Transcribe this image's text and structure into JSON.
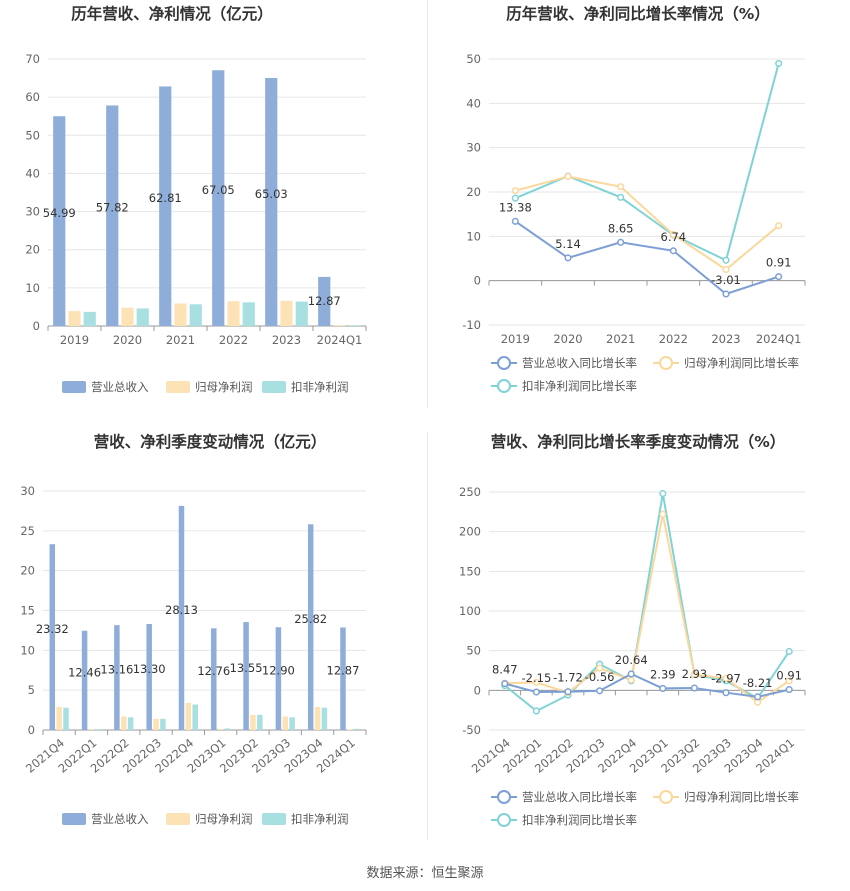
{
  "colors": {
    "revenue": "#8eadd9",
    "net_profit": "#fde2b5",
    "deducted_profit": "#a8e0e2",
    "revenue_line": "#7c9fd5",
    "net_profit_line": "#fcd79b",
    "deducted_profit_line": "#7fd3d5"
  },
  "source_text": "数据来源：恒生聚源",
  "chart_data": [
    {
      "type": "bar",
      "title": "历年营收、净利情况（亿元）",
      "categories": [
        "2019",
        "2020",
        "2021",
        "2022",
        "2023",
        "2024Q1"
      ],
      "ylim": [
        0,
        70
      ],
      "yticks": [
        0,
        10,
        20,
        30,
        40,
        50,
        60,
        70
      ],
      "series": [
        {
          "name": "营业总收入",
          "values": [
            54.99,
            57.82,
            62.81,
            67.05,
            65.03,
            12.87
          ],
          "labels": [
            "54.99",
            "57.82",
            "62.81",
            "67.05",
            "65.03",
            "12.87"
          ]
        },
        {
          "name": "归母净利润",
          "values": [
            3.9,
            4.8,
            5.9,
            6.5,
            6.6,
            0.1
          ]
        },
        {
          "name": "扣非净利润",
          "values": [
            3.7,
            4.6,
            5.7,
            6.2,
            6.4,
            0.15
          ]
        }
      ],
      "legend": "bottom",
      "grid": true
    },
    {
      "type": "line",
      "title": "历年营收、净利同比增长率情况（%）",
      "categories": [
        "2019",
        "2020",
        "2021",
        "2022",
        "2023",
        "2024Q1"
      ],
      "ylim": [
        -10,
        50
      ],
      "yticks": [
        -10,
        0,
        10,
        20,
        30,
        40,
        50
      ],
      "series": [
        {
          "name": "营业总收入同比增长率",
          "values": [
            13.38,
            5.14,
            8.65,
            6.74,
            -3.01,
            0.91
          ],
          "labels": [
            "13.38",
            "5.14",
            "8.65",
            "6.74",
            "-3.01",
            "0.91"
          ]
        },
        {
          "name": "归母净利润同比增长率",
          "values": [
            20.3,
            23.5,
            21.2,
            10.4,
            2.5,
            12.4
          ]
        },
        {
          "name": "扣非净利润同比增长率",
          "values": [
            18.6,
            23.6,
            18.8,
            10.3,
            4.6,
            49.0
          ]
        }
      ],
      "legend": "bottom",
      "grid": true
    },
    {
      "type": "bar",
      "title": "营收、净利季度变动情况（亿元）",
      "categories": [
        "2021Q4",
        "2022Q1",
        "2022Q2",
        "2022Q3",
        "2022Q4",
        "2023Q1",
        "2023Q2",
        "2023Q3",
        "2023Q4",
        "2024Q1"
      ],
      "ylim": [
        0,
        30
      ],
      "yticks": [
        0,
        5,
        10,
        15,
        20,
        25,
        30
      ],
      "series": [
        {
          "name": "营业总收入",
          "values": [
            23.32,
            12.46,
            13.16,
            13.3,
            28.13,
            12.76,
            13.55,
            12.9,
            25.82,
            12.87
          ],
          "labels": [
            "23.32",
            "12.46",
            "13.16",
            "13.30",
            "28.13",
            "12.76",
            "13.55",
            "12.90",
            "25.82",
            "12.87"
          ]
        },
        {
          "name": "归母净利润",
          "values": [
            2.9,
            0.1,
            1.7,
            1.4,
            3.4,
            0.15,
            1.9,
            1.7,
            2.9,
            0.1
          ]
        },
        {
          "name": "扣非净利润",
          "values": [
            2.8,
            0.05,
            1.6,
            1.4,
            3.2,
            0.2,
            1.9,
            1.6,
            2.8,
            0.15
          ]
        }
      ],
      "legend": "bottom",
      "grid": true
    },
    {
      "type": "line",
      "title": "营收、净利同比增长率季度变动情况（%）",
      "categories": [
        "2021Q4",
        "2022Q1",
        "2022Q2",
        "2022Q3",
        "2022Q4",
        "2023Q1",
        "2023Q2",
        "2023Q3",
        "2023Q4",
        "2024Q1"
      ],
      "ylim": [
        -50,
        250
      ],
      "yticks": [
        -50,
        0,
        50,
        100,
        150,
        200,
        250
      ],
      "series": [
        {
          "name": "营业总收入同比增长率",
          "values": [
            8.47,
            -2.15,
            -1.72,
            -0.56,
            20.64,
            2.39,
            2.93,
            -2.97,
            -8.21,
            0.91
          ],
          "labels": [
            "8.47",
            "-2.15",
            "-1.72",
            "-0.56",
            "20.64",
            "2.39",
            "2.93",
            "-2.97",
            "-8.21",
            "0.91"
          ]
        },
        {
          "name": "归母净利润同比增长率",
          "values": [
            9,
            10,
            -3,
            28,
            13,
            222,
            20,
            15,
            -15,
            12
          ]
        },
        {
          "name": "扣非净利润同比增长率",
          "values": [
            6,
            -26,
            -6,
            33,
            12,
            248,
            20,
            12,
            -10,
            49
          ]
        }
      ],
      "legend": "bottom",
      "grid": true
    }
  ]
}
